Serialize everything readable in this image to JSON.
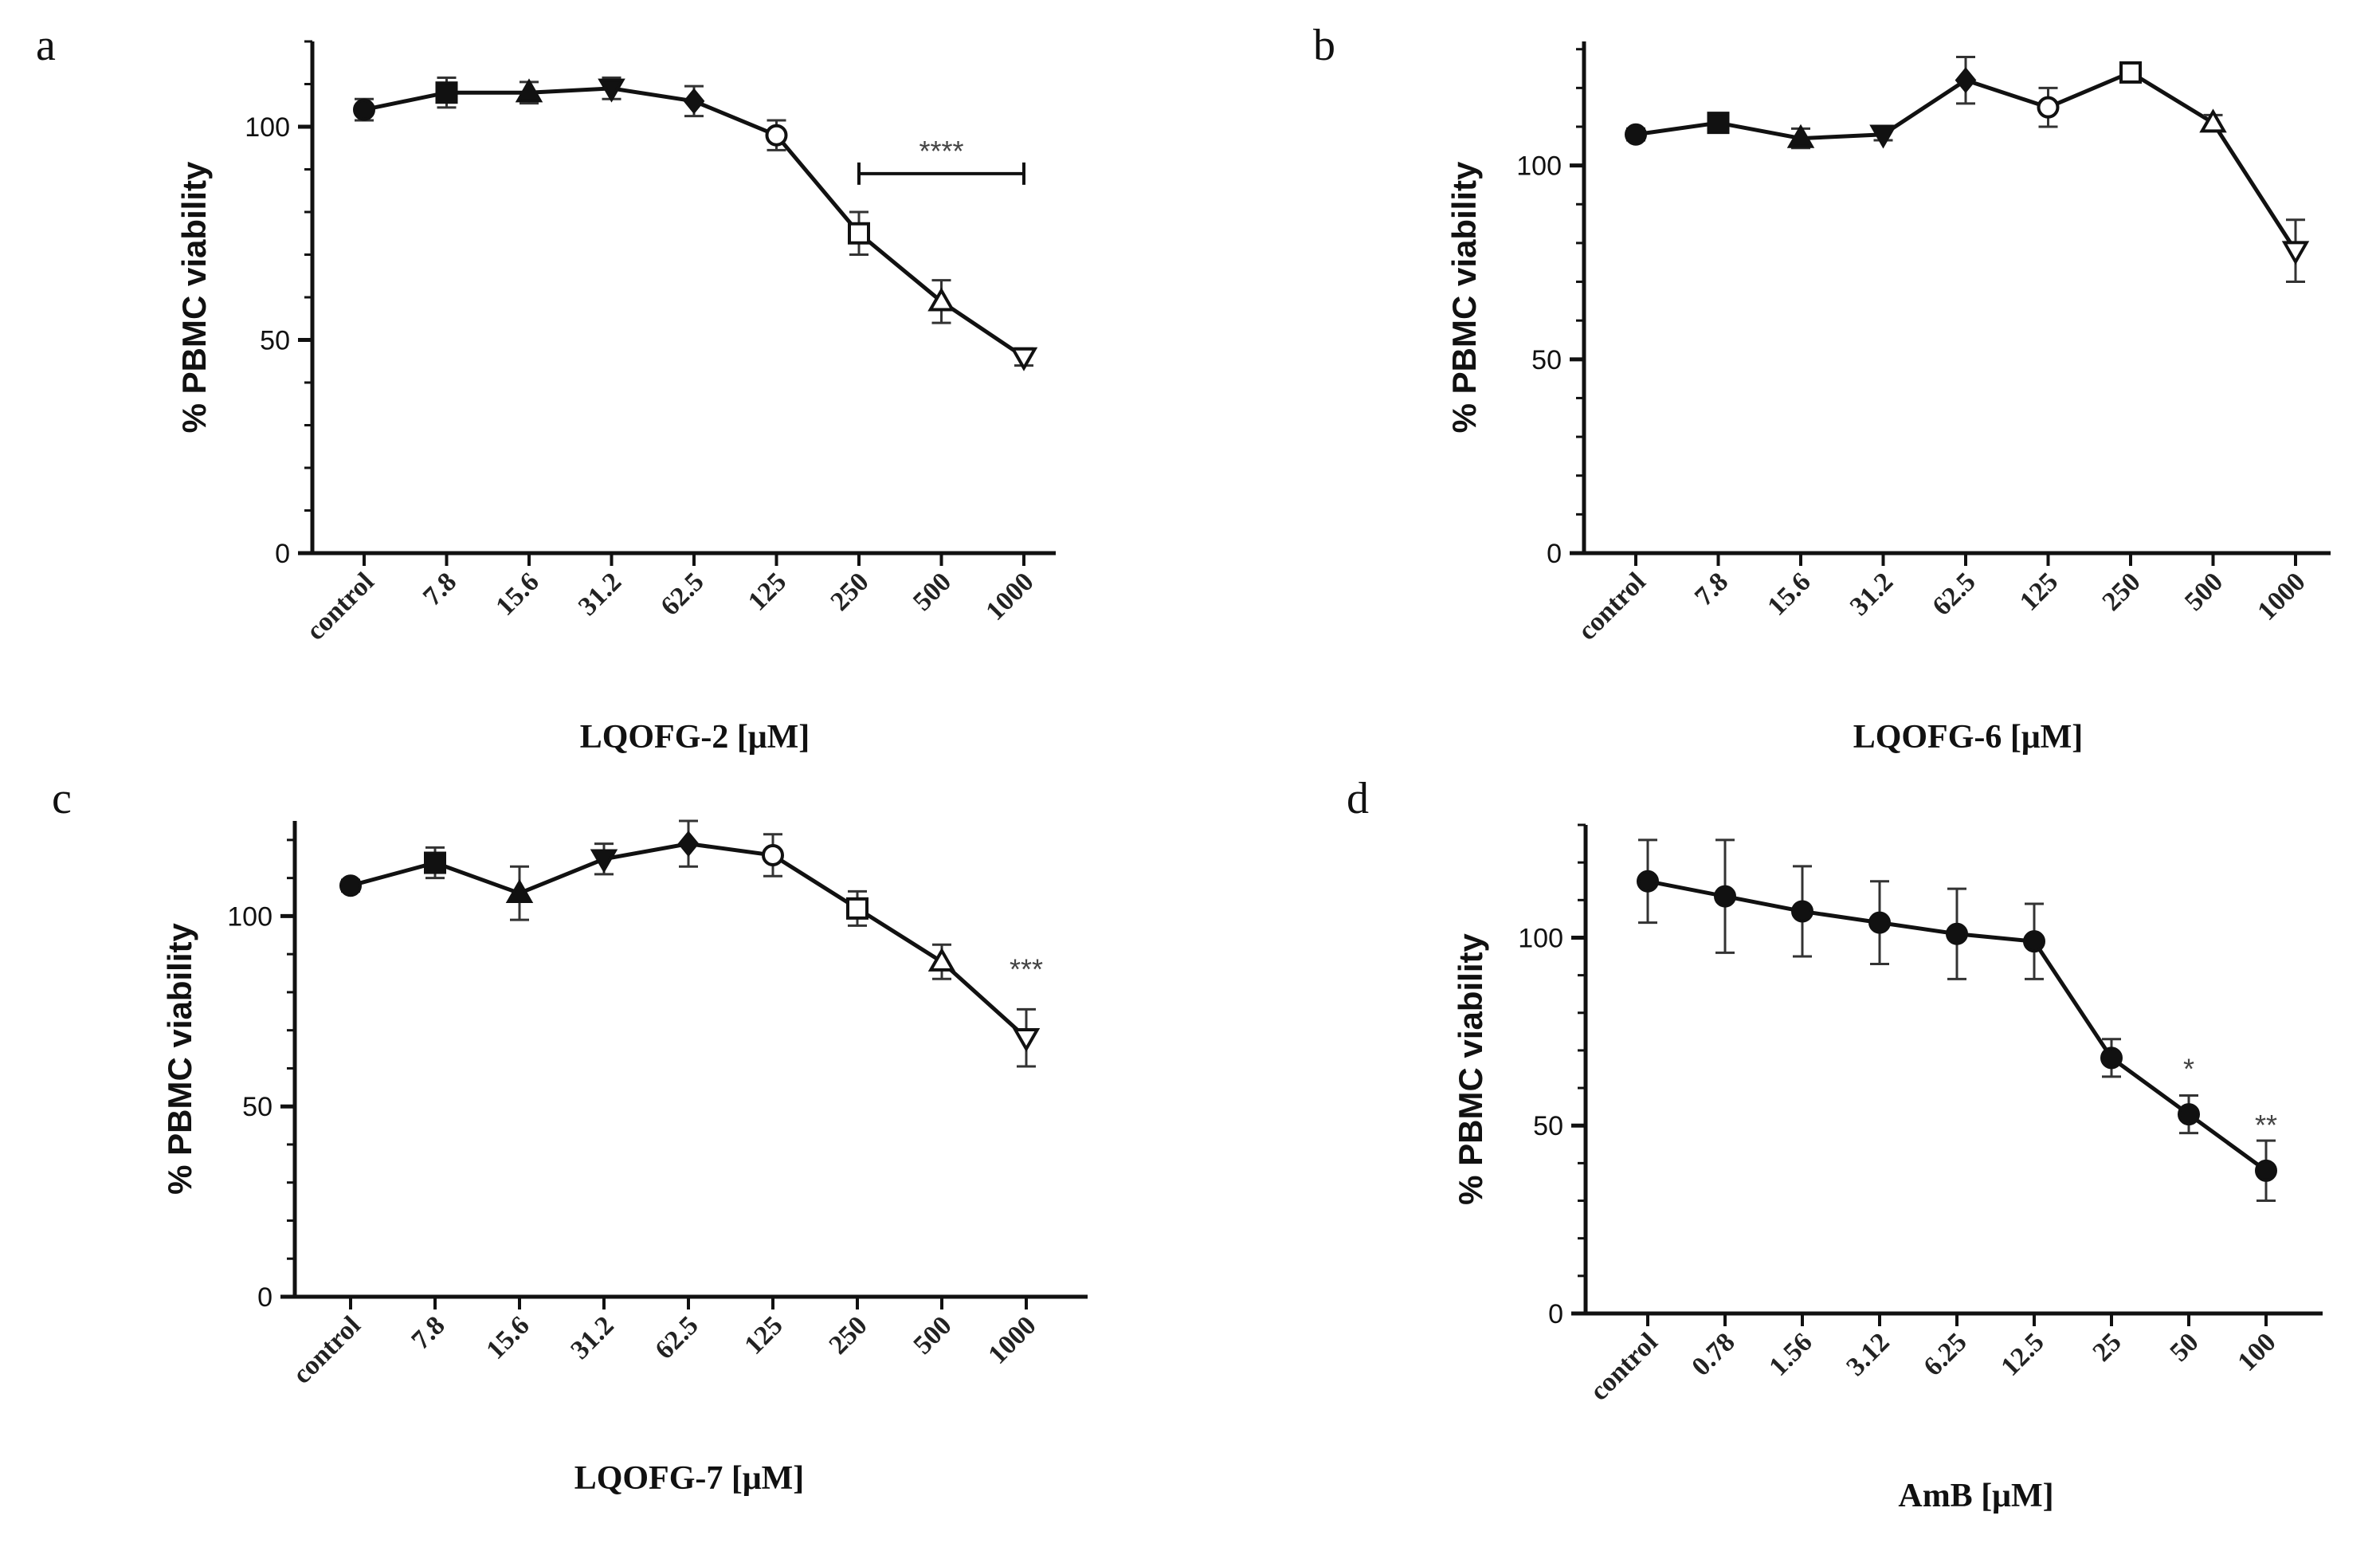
{
  "figure": {
    "background": "#ffffff",
    "ink": "#111111"
  },
  "chart_data": [
    {
      "panel": "a",
      "type": "line",
      "categories": [
        "control",
        "7.8",
        "15.6",
        "31.2",
        "62.5",
        "125",
        "250",
        "500",
        "1000"
      ],
      "series": [
        {
          "values": [
            104,
            108,
            108,
            109,
            106,
            98,
            75,
            59,
            46
          ],
          "errors": [
            2.5,
            3.5,
            2.5,
            2.5,
            3.5,
            3.5,
            5,
            5,
            2
          ],
          "markers": [
            "circle",
            "square",
            "triangle-up",
            "triangle-down",
            "diamond",
            "circle-open",
            "square-open",
            "triangle-up-open",
            "triangle-down-open"
          ]
        }
      ],
      "xlabel": "LQOFG-2 [μM]",
      "ylabel": "% PBMC viability",
      "ylim": [
        0,
        120
      ],
      "yticks": [
        0,
        50,
        100
      ],
      "annotations": [
        {
          "text": "****",
          "type": "bracket",
          "from": "250",
          "to": "1000",
          "y": 89
        }
      ]
    },
    {
      "panel": "b",
      "type": "line",
      "categories": [
        "control",
        "7.8",
        "15.6",
        "31.2",
        "62.5",
        "125",
        "250",
        "500",
        "1000"
      ],
      "series": [
        {
          "values": [
            108,
            111,
            107,
            108,
            122,
            115,
            124,
            111,
            78
          ],
          "errors": [
            1.5,
            2.5,
            2.5,
            1.5,
            6,
            5,
            2,
            2,
            8
          ],
          "markers": [
            "circle",
            "square",
            "triangle-up",
            "triangle-down",
            "diamond",
            "circle-open",
            "square-open",
            "triangle-up-open",
            "triangle-down-open"
          ]
        }
      ],
      "xlabel": "LQOFG-6 [μM]",
      "ylabel": "% PBMC viability",
      "ylim": [
        0,
        132
      ],
      "yticks": [
        0,
        50,
        100
      ],
      "annotations": []
    },
    {
      "panel": "c",
      "type": "line",
      "categories": [
        "control",
        "7.8",
        "15.6",
        "31.2",
        "62.5",
        "125",
        "250",
        "500",
        "1000"
      ],
      "series": [
        {
          "values": [
            108,
            114,
            106,
            115,
            119,
            116,
            102,
            88,
            68
          ],
          "errors": [
            1.5,
            4,
            7,
            4,
            6,
            5.5,
            4.5,
            4.5,
            7.5
          ],
          "markers": [
            "circle",
            "square",
            "triangle-up",
            "triangle-down",
            "diamond",
            "circle-open",
            "square-open",
            "triangle-up-open",
            "triangle-down-open"
          ]
        }
      ],
      "xlabel": "LQOFG-7 [μM]",
      "ylabel": "% PBMC viability",
      "ylim": [
        0,
        125
      ],
      "yticks": [
        0,
        50,
        100
      ],
      "annotations": [
        {
          "text": "***",
          "type": "label",
          "at": "1000",
          "y": 86
        }
      ]
    },
    {
      "panel": "d",
      "type": "line",
      "categories": [
        "control",
        "0.78",
        "1.56",
        "3.12",
        "6.25",
        "12.5",
        "25",
        "50",
        "100"
      ],
      "series": [
        {
          "values": [
            115,
            111,
            107,
            104,
            101,
            99,
            68,
            53,
            38
          ],
          "errors": [
            11,
            15,
            12,
            11,
            12,
            10,
            5,
            5,
            8
          ],
          "markers": [
            "circle",
            "circle",
            "circle",
            "circle",
            "circle",
            "circle",
            "circle",
            "circle",
            "circle"
          ]
        }
      ],
      "xlabel": "AmB [μM]",
      "ylabel": "% PBMC viability",
      "ylim": [
        0,
        130
      ],
      "yticks": [
        0,
        50,
        100
      ],
      "annotations": [
        {
          "text": "*",
          "type": "label",
          "at": "50",
          "y": 65
        },
        {
          "text": "**",
          "type": "label",
          "at": "100",
          "y": 50
        }
      ]
    }
  ]
}
